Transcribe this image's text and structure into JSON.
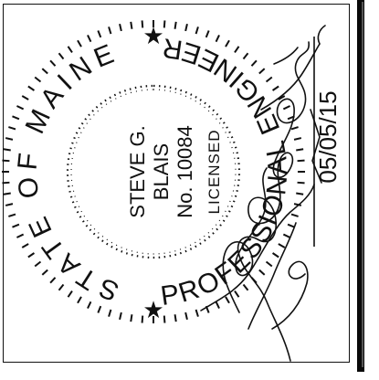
{
  "seal": {
    "ring_top": "STATE OF MAINE",
    "ring_bottom": "PROFESSIONAL ENGINEER",
    "name_line_1": "STEVE G.",
    "name_line_2": "BLAIS",
    "license_number": "No. 10084",
    "status": "LICENSED"
  },
  "signature": {
    "date": "05/05/15"
  },
  "colors": {
    "ink": "#111111",
    "background": "#ffffff"
  }
}
